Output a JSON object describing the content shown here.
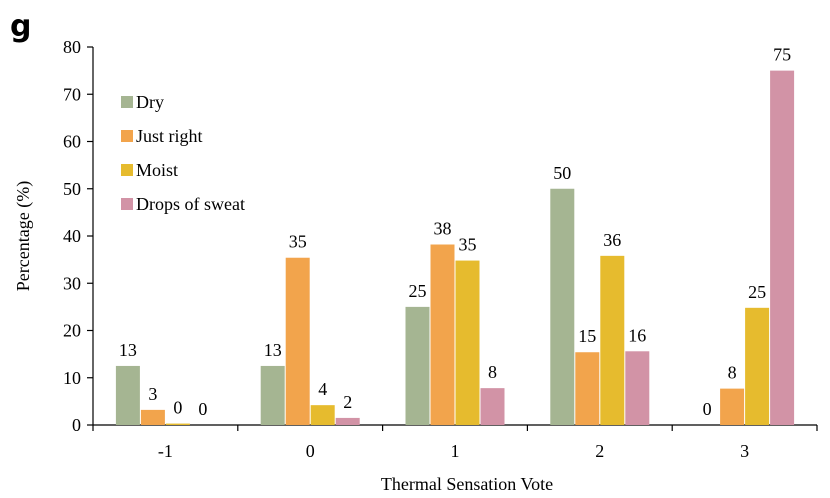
{
  "panel_label": "g",
  "chart_data": {
    "type": "bar",
    "title": "",
    "xlabel": "Thermal Sensation Vote",
    "ylabel": "Percentage (%)",
    "ylim": [
      0,
      80
    ],
    "yticks": [
      0,
      10,
      20,
      30,
      40,
      50,
      60,
      70,
      80
    ],
    "grid": false,
    "legend_position": "top-left",
    "categories": [
      "-1",
      "0",
      "1",
      "2",
      "3"
    ],
    "series": [
      {
        "name": "Dry",
        "color": "#a5b592",
        "values": [
          12.5,
          12.5,
          25,
          50,
          0
        ],
        "labels": [
          "13",
          "13",
          "25",
          "50",
          "0"
        ]
      },
      {
        "name": "Just right",
        "color": "#f2a44c",
        "values": [
          3.2,
          35.4,
          38.2,
          15.4,
          7.7
        ],
        "labels": [
          "3",
          "35",
          "38",
          "15",
          "8"
        ]
      },
      {
        "name": "Moist",
        "color": "#e6bb2e",
        "values": [
          0.3,
          4.2,
          34.8,
          35.8,
          24.8
        ],
        "labels": [
          "0",
          "4",
          "35",
          "36",
          "25"
        ]
      },
      {
        "name": "Drops of sweat",
        "color": "#d293a6",
        "values": [
          0,
          1.5,
          7.8,
          15.6,
          75
        ],
        "labels": [
          "0",
          "2",
          "8",
          "16",
          "75"
        ]
      }
    ]
  }
}
